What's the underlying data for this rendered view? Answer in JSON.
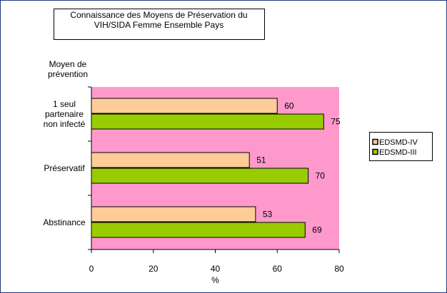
{
  "chart_data": {
    "type": "hbar",
    "title": "Connaissance des Moyens de Préservation du VIH/SIDA Femme Ensemble Pays",
    "y_label": "Moyen de prévention",
    "x_label": "%",
    "categories": [
      "1 seul partenaire non infecté",
      "Préservatif",
      "Abstinance"
    ],
    "series": [
      {
        "name": "EDSMD-IV",
        "color": "#ffcc99",
        "values": [
          60,
          51,
          53
        ]
      },
      {
        "name": "EDSMD-III",
        "color": "#99cc00",
        "values": [
          75,
          70,
          69
        ]
      }
    ],
    "xlim": [
      0,
      80
    ],
    "xticks": [
      0,
      20,
      40,
      60,
      80
    ],
    "plot_background": "#ff99cc",
    "legend": "right",
    "grid": false
  }
}
